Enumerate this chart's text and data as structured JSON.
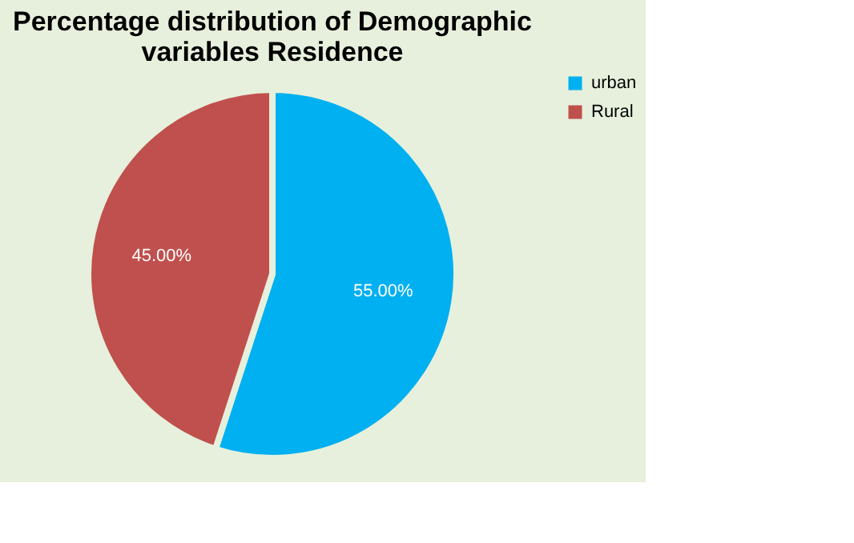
{
  "chart_data": {
    "type": "pie",
    "title": [
      "Percentage distribution of Demographic",
      "variables Residence"
    ],
    "categories": [
      "urban",
      "Rural"
    ],
    "values": [
      55,
      45
    ],
    "colors": [
      "#00b0f0",
      "#c0504d"
    ],
    "value_labels": [
      "55.00%",
      "45.00%"
    ],
    "legend": "right"
  }
}
